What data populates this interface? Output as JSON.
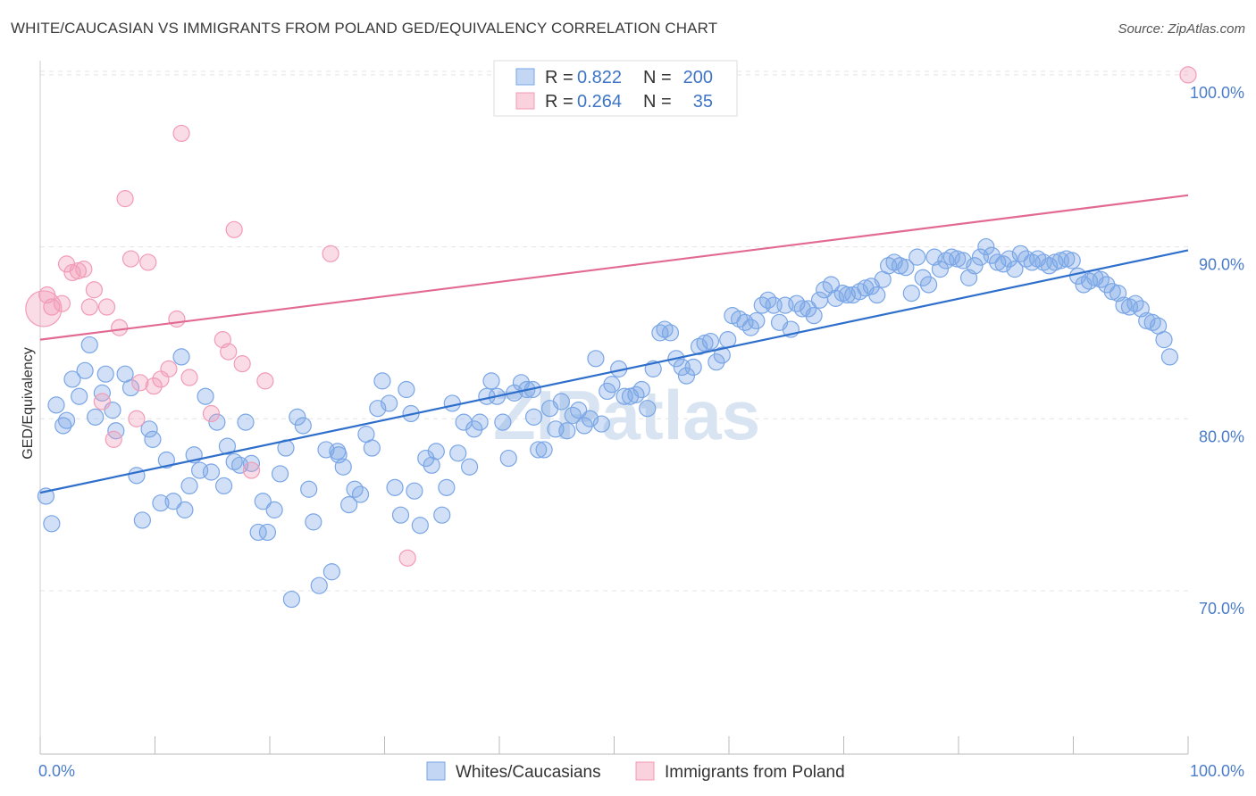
{
  "title": "WHITE/CAUCASIAN VS IMMIGRANTS FROM POLAND GED/EQUIVALENCY CORRELATION CHART",
  "source": "Source: ZipAtlas.com",
  "watermark": "ZIPatlas",
  "chart_data": {
    "type": "scatter",
    "ylabel": "GED/Equivalency",
    "xlim": [
      0,
      100
    ],
    "ylim": [
      60.5,
      101.5
    ],
    "x_tick_labels": [
      "0.0%",
      "100.0%"
    ],
    "y_ticks": [
      70,
      80,
      90,
      100
    ],
    "y_tick_labels": [
      "70.0%",
      "80.0%",
      "90.0%",
      "100.0%"
    ],
    "grid": true,
    "legend_top": [
      {
        "r_label": "R =",
        "r_value": "0.822",
        "n_label": "N =",
        "n_value": "200",
        "color": "#7aa6e6"
      },
      {
        "r_label": "R =",
        "r_value": "0.264",
        "n_label": "N =",
        "n_value": "35",
        "color": "#f29bb6"
      }
    ],
    "series": [
      {
        "name": "Whites/Caucasians",
        "color": "#7aa6e6",
        "line_color": "#2f6fcc",
        "trend": {
          "x": [
            0,
            100
          ],
          "y": [
            75.7,
            89.8
          ]
        },
        "points": [
          [
            0.5,
            75.5
          ],
          [
            1.0,
            73.9
          ],
          [
            1.4,
            80.8
          ],
          [
            2.0,
            79.6
          ],
          [
            2.3,
            79.9
          ],
          [
            2.8,
            82.3
          ],
          [
            3.4,
            81.3
          ],
          [
            3.9,
            82.8
          ],
          [
            4.3,
            84.3
          ],
          [
            4.8,
            80.1
          ],
          [
            5.4,
            81.5
          ],
          [
            5.7,
            82.6
          ],
          [
            6.3,
            80.5
          ],
          [
            6.6,
            79.3
          ],
          [
            7.4,
            82.6
          ],
          [
            7.9,
            81.8
          ],
          [
            8.4,
            76.7
          ],
          [
            8.9,
            74.1
          ],
          [
            9.5,
            79.4
          ],
          [
            9.8,
            78.8
          ],
          [
            10.5,
            75.1
          ],
          [
            11.0,
            77.6
          ],
          [
            11.6,
            75.2
          ],
          [
            12.3,
            83.6
          ],
          [
            12.6,
            74.7
          ],
          [
            13.0,
            76.1
          ],
          [
            13.4,
            77.9
          ],
          [
            13.9,
            77.0
          ],
          [
            14.4,
            81.3
          ],
          [
            14.9,
            76.9
          ],
          [
            15.4,
            79.8
          ],
          [
            16.0,
            76.1
          ],
          [
            16.3,
            78.4
          ],
          [
            16.9,
            77.5
          ],
          [
            17.4,
            77.3
          ],
          [
            17.9,
            79.8
          ],
          [
            18.4,
            77.4
          ],
          [
            19.0,
            73.4
          ],
          [
            19.4,
            75.2
          ],
          [
            19.8,
            73.4
          ],
          [
            20.4,
            74.7
          ],
          [
            20.9,
            76.8
          ],
          [
            21.4,
            78.3
          ],
          [
            21.9,
            69.5
          ],
          [
            22.4,
            80.1
          ],
          [
            22.9,
            79.6
          ],
          [
            23.4,
            75.9
          ],
          [
            23.8,
            74.0
          ],
          [
            24.3,
            70.3
          ],
          [
            24.9,
            78.2
          ],
          [
            25.4,
            71.1
          ],
          [
            25.9,
            78.1
          ],
          [
            26.4,
            77.2
          ],
          [
            26.9,
            75.0
          ],
          [
            27.4,
            75.9
          ],
          [
            27.9,
            75.6
          ],
          [
            28.4,
            79.1
          ],
          [
            28.9,
            78.3
          ],
          [
            29.4,
            80.6
          ],
          [
            29.8,
            82.2
          ],
          [
            30.4,
            80.9
          ],
          [
            30.9,
            76.0
          ],
          [
            31.4,
            74.4
          ],
          [
            31.9,
            81.7
          ],
          [
            32.3,
            80.3
          ],
          [
            32.6,
            75.8
          ],
          [
            33.1,
            73.8
          ],
          [
            33.6,
            77.7
          ],
          [
            34.1,
            77.3
          ],
          [
            34.5,
            78.1
          ],
          [
            35.0,
            74.4
          ],
          [
            35.4,
            76.0
          ],
          [
            35.9,
            80.9
          ],
          [
            36.4,
            78.0
          ],
          [
            36.9,
            79.8
          ],
          [
            37.4,
            77.2
          ],
          [
            37.8,
            79.4
          ],
          [
            38.3,
            79.8
          ],
          [
            38.9,
            81.3
          ],
          [
            39.3,
            82.2
          ],
          [
            39.8,
            81.3
          ],
          [
            40.3,
            79.8
          ],
          [
            40.8,
            77.7
          ],
          [
            41.3,
            81.5
          ],
          [
            41.9,
            82.1
          ],
          [
            42.4,
            81.7
          ],
          [
            42.9,
            81.7
          ],
          [
            43.4,
            78.2
          ],
          [
            43.9,
            78.2
          ],
          [
            44.4,
            80.6
          ],
          [
            44.9,
            79.4
          ],
          [
            45.4,
            81.0
          ],
          [
            45.9,
            79.3
          ],
          [
            46.4,
            80.2
          ],
          [
            46.9,
            80.5
          ],
          [
            47.4,
            79.6
          ],
          [
            47.9,
            80.0
          ],
          [
            48.4,
            83.5
          ],
          [
            48.9,
            79.7
          ],
          [
            49.4,
            81.6
          ],
          [
            49.8,
            82.0
          ],
          [
            50.4,
            82.9
          ],
          [
            50.9,
            81.3
          ],
          [
            51.4,
            81.3
          ],
          [
            51.9,
            81.4
          ],
          [
            52.4,
            81.7
          ],
          [
            52.9,
            80.6
          ],
          [
            53.4,
            82.9
          ],
          [
            54.0,
            85.0
          ],
          [
            54.4,
            85.2
          ],
          [
            54.9,
            85.0
          ],
          [
            55.4,
            83.5
          ],
          [
            55.9,
            83.0
          ],
          [
            56.3,
            82.5
          ],
          [
            56.9,
            83.0
          ],
          [
            57.4,
            84.2
          ],
          [
            57.9,
            84.4
          ],
          [
            58.4,
            84.5
          ],
          [
            58.9,
            83.3
          ],
          [
            59.4,
            83.7
          ],
          [
            59.9,
            84.6
          ],
          [
            60.3,
            86.0
          ],
          [
            60.9,
            85.8
          ],
          [
            61.4,
            85.6
          ],
          [
            61.9,
            85.3
          ],
          [
            62.4,
            85.7
          ],
          [
            62.9,
            86.6
          ],
          [
            63.4,
            86.9
          ],
          [
            63.9,
            86.6
          ],
          [
            64.4,
            85.6
          ],
          [
            64.9,
            86.6
          ],
          [
            65.4,
            85.2
          ],
          [
            65.9,
            86.7
          ],
          [
            66.4,
            86.4
          ],
          [
            66.9,
            86.4
          ],
          [
            67.4,
            86.0
          ],
          [
            67.9,
            86.9
          ],
          [
            68.3,
            87.5
          ],
          [
            68.9,
            87.8
          ],
          [
            69.3,
            87.0
          ],
          [
            69.9,
            87.3
          ],
          [
            70.3,
            87.2
          ],
          [
            70.8,
            87.2
          ],
          [
            71.4,
            87.4
          ],
          [
            71.9,
            87.6
          ],
          [
            72.4,
            87.7
          ],
          [
            72.9,
            87.2
          ],
          [
            73.4,
            88.1
          ],
          [
            73.9,
            88.9
          ],
          [
            74.4,
            89.1
          ],
          [
            74.9,
            88.9
          ],
          [
            75.4,
            88.8
          ],
          [
            75.9,
            87.3
          ],
          [
            76.4,
            89.4
          ],
          [
            76.9,
            88.2
          ],
          [
            77.4,
            87.8
          ],
          [
            77.9,
            89.4
          ],
          [
            78.4,
            88.7
          ],
          [
            78.9,
            89.2
          ],
          [
            79.4,
            89.4
          ],
          [
            79.9,
            89.3
          ],
          [
            80.4,
            89.2
          ],
          [
            80.9,
            88.2
          ],
          [
            81.4,
            88.9
          ],
          [
            81.9,
            89.4
          ],
          [
            82.4,
            90.0
          ],
          [
            82.9,
            89.5
          ],
          [
            83.4,
            89.1
          ],
          [
            83.9,
            89.0
          ],
          [
            84.4,
            89.3
          ],
          [
            84.9,
            88.7
          ],
          [
            85.4,
            89.6
          ],
          [
            85.9,
            89.3
          ],
          [
            86.4,
            89.1
          ],
          [
            86.9,
            89.3
          ],
          [
            87.4,
            89.1
          ],
          [
            87.9,
            88.9
          ],
          [
            88.4,
            89.1
          ],
          [
            88.9,
            89.2
          ],
          [
            89.4,
            89.3
          ],
          [
            89.9,
            89.2
          ],
          [
            90.4,
            88.3
          ],
          [
            90.9,
            87.8
          ],
          [
            91.4,
            88.0
          ],
          [
            91.9,
            88.2
          ],
          [
            92.4,
            88.1
          ],
          [
            92.9,
            87.8
          ],
          [
            93.4,
            87.4
          ],
          [
            93.9,
            87.3
          ],
          [
            94.4,
            86.6
          ],
          [
            94.9,
            86.5
          ],
          [
            95.4,
            86.7
          ],
          [
            95.9,
            86.4
          ],
          [
            96.4,
            85.7
          ],
          [
            96.9,
            85.6
          ],
          [
            97.4,
            85.4
          ],
          [
            97.9,
            84.6
          ],
          [
            98.4,
            83.6
          ],
          [
            26.0,
            77.9
          ],
          [
            43.0,
            80.1
          ]
        ]
      },
      {
        "name": "Immigrants from Poland",
        "color": "#f29bb6",
        "line_color": "#e26a92",
        "trend": {
          "x": [
            0,
            100
          ],
          "y": [
            84.6,
            93.0
          ]
        },
        "points": [
          [
            0.3,
            86.4
          ],
          [
            0.6,
            87.2
          ],
          [
            1.0,
            86.5
          ],
          [
            1.9,
            86.7
          ],
          [
            2.3,
            89.0
          ],
          [
            2.8,
            88.5
          ],
          [
            3.3,
            88.6
          ],
          [
            3.8,
            88.7
          ],
          [
            4.3,
            86.5
          ],
          [
            4.7,
            87.5
          ],
          [
            5.4,
            81.0
          ],
          [
            5.8,
            86.5
          ],
          [
            6.4,
            78.8
          ],
          [
            6.9,
            85.3
          ],
          [
            7.4,
            92.8
          ],
          [
            7.9,
            89.3
          ],
          [
            8.4,
            80.0
          ],
          [
            8.7,
            82.1
          ],
          [
            9.4,
            89.1
          ],
          [
            9.9,
            81.9
          ],
          [
            10.5,
            82.3
          ],
          [
            11.2,
            82.9
          ],
          [
            11.9,
            85.8
          ],
          [
            12.3,
            96.6
          ],
          [
            13.0,
            82.4
          ],
          [
            14.9,
            80.3
          ],
          [
            15.9,
            84.6
          ],
          [
            16.4,
            83.9
          ],
          [
            16.9,
            91.0
          ],
          [
            17.6,
            83.2
          ],
          [
            18.4,
            77.0
          ],
          [
            19.6,
            82.2
          ],
          [
            25.3,
            89.6
          ],
          [
            32.0,
            71.9
          ],
          [
            100.0,
            100.0
          ]
        ]
      }
    ]
  }
}
